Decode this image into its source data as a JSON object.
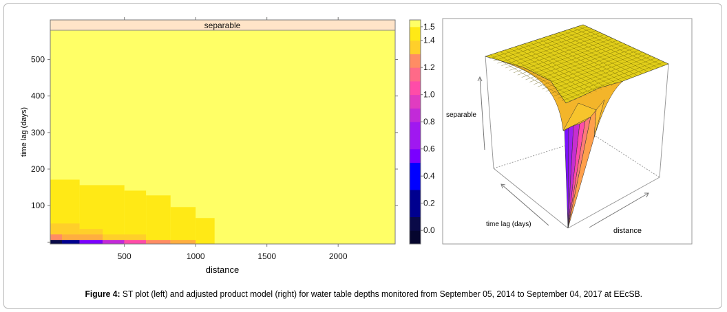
{
  "chart_data": [
    {
      "type": "heatmap",
      "title": "separable",
      "xlabel": "distance",
      "ylabel": "time lag (days)",
      "xlim": [
        -20,
        2400
      ],
      "ylim": [
        -5,
        580
      ],
      "xticks": [
        500,
        1000,
        1500,
        2000
      ],
      "yticks": [
        100,
        200,
        300,
        400,
        500
      ],
      "background_value": 1.5,
      "cells": [
        {
          "d": [
            -20,
            186
          ],
          "t": [
            -5,
            171
          ],
          "v": 1.45
        },
        {
          "d": [
            186,
            500
          ],
          "t": [
            -5,
            156
          ],
          "v": 1.45
        },
        {
          "d": [
            500,
            652
          ],
          "t": [
            -5,
            141
          ],
          "v": 1.45
        },
        {
          "d": [
            652,
            824
          ],
          "t": [
            -5,
            128
          ],
          "v": 1.45
        },
        {
          "d": [
            824,
            1000
          ],
          "t": [
            -5,
            96
          ],
          "v": 1.45
        },
        {
          "d": [
            1000,
            1133
          ],
          "t": [
            -5,
            66
          ],
          "v": 1.45
        },
        {
          "d": [
            -20,
            186
          ],
          "t": [
            -5,
            51
          ],
          "v": 1.4
        },
        {
          "d": [
            186,
            348
          ],
          "t": [
            -5,
            36
          ],
          "v": 1.4
        },
        {
          "d": [
            348,
            652
          ],
          "t": [
            -5,
            21
          ],
          "v": 1.4
        },
        {
          "d": [
            -20,
            348
          ],
          "t": [
            -5,
            21
          ],
          "v": 1.3
        },
        {
          "d": [
            -20,
            62
          ],
          "t": [
            -5,
            21
          ],
          "v": 1.2
        },
        {
          "d": [
            -20,
            62
          ],
          "t": [
            -5,
            6
          ],
          "v": 0.0
        },
        {
          "d": [
            62,
            186
          ],
          "t": [
            -5,
            6
          ],
          "v": 0.2
        },
        {
          "d": [
            186,
            348
          ],
          "t": [
            -5,
            6
          ],
          "v": 0.6
        },
        {
          "d": [
            348,
            500
          ],
          "t": [
            -5,
            6
          ],
          "v": 0.8
        },
        {
          "d": [
            500,
            652
          ],
          "t": [
            -5,
            6
          ],
          "v": 1.0
        },
        {
          "d": [
            652,
            824
          ],
          "t": [
            -5,
            6
          ],
          "v": 1.2
        },
        {
          "d": [
            824,
            1000
          ],
          "t": [
            -5,
            6
          ],
          "v": 1.3
        }
      ],
      "colorbar": {
        "range": [
          -0.1,
          1.55
        ],
        "ticks": [
          0.0,
          0.2,
          0.4,
          0.6,
          0.8,
          1.0,
          1.2,
          1.4,
          1.5
        ],
        "tick_labels": [
          "0.0",
          "0.2",
          "0.4",
          "0.6",
          "0.8",
          "1.0",
          "1.2",
          "1.4",
          "1.5"
        ]
      }
    },
    {
      "type": "surface3d",
      "zlabel": "separable",
      "xlabel": "distance",
      "ylabel": "time lag (days)"
    }
  ],
  "palette": {
    "-0.1": "#05052e",
    "0.0": "#0a0a48",
    "0.1": "#000066",
    "0.2": "#00008f",
    "0.3": "#0000c0",
    "0.4": "#0000ff",
    "0.5": "#3a00ff",
    "0.6": "#7a00ff",
    "0.7": "#a018f0",
    "0.8": "#c22ad8",
    "0.9": "#e03cc0",
    "1.0": "#ff4ca8",
    "1.1": "#ff6a88",
    "1.2": "#ff8c64",
    "1.3": "#ffae40",
    "1.4": "#ffcf2a",
    "1.45": "#ffe916",
    "1.5": "#ffff66"
  },
  "strip_color": "#ffe4c8",
  "caption": {
    "label": "Figure 4:",
    "text": " ST plot (left) and adjusted product model (right) for water table depths monitored from September 05, 2014 to September 04, 2017 at EEcSB."
  }
}
